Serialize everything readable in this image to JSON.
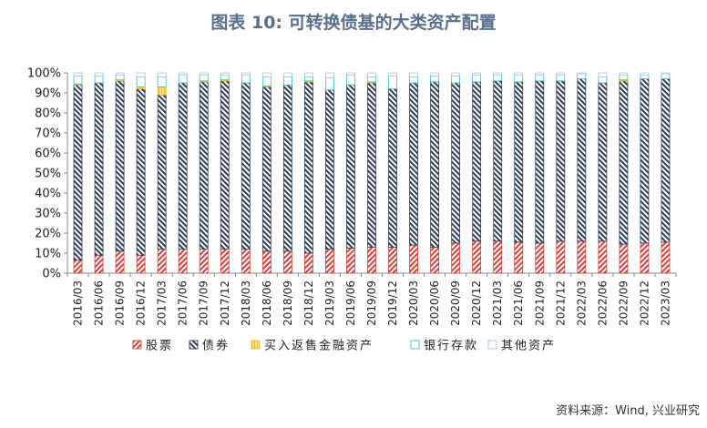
{
  "title": "图表 10: 可转换债基的大类资产配置",
  "source": "资料来源：Wind, 兴业研究",
  "chart_data": {
    "type": "bar",
    "stacked": true,
    "ylim": [
      0,
      100
    ],
    "yticks": [
      "0%",
      "10%",
      "20%",
      "30%",
      "40%",
      "50%",
      "60%",
      "70%",
      "80%",
      "90%",
      "100%"
    ],
    "categories": [
      "2016/03",
      "2016/06",
      "2016/09",
      "2016/12",
      "2017/03",
      "2017/06",
      "2017/09",
      "2017/12",
      "2018/03",
      "2018/06",
      "2018/09",
      "2018/12",
      "2019/03",
      "2019/06",
      "2019/09",
      "2019/12",
      "2020/03",
      "2020/06",
      "2020/09",
      "2020/12",
      "2021/03",
      "2021/06",
      "2021/09",
      "2021/12",
      "2022/03",
      "2022/06",
      "2022/09",
      "2022/12",
      "2023/03"
    ],
    "series": [
      {
        "name": "股票",
        "color": "#d9403a",
        "pattern": "diag-red",
        "values": [
          6.5,
          9,
          11,
          9,
          12,
          12,
          12,
          12,
          12,
          11,
          11,
          10,
          12,
          12.5,
          13,
          13,
          14,
          13,
          15,
          16,
          16,
          15.5,
          15,
          16,
          16,
          16,
          14.5,
          15,
          15.5
        ]
      },
      {
        "name": "债券",
        "color": "#2e3e57",
        "pattern": "diag-navy",
        "values": [
          87.5,
          86,
          85,
          83,
          77,
          83,
          83.5,
          84,
          83,
          82,
          83,
          85.5,
          79.5,
          81.5,
          82,
          79,
          81,
          82.5,
          80,
          79.5,
          80,
          80,
          81,
          80,
          81,
          79,
          81.5,
          82,
          81.5
        ]
      },
      {
        "name": "买入返售金融资产",
        "color": "#e8b923",
        "pattern": "grid-yellow",
        "values": [
          0.5,
          0,
          0.5,
          1,
          4,
          0,
          0.5,
          0.5,
          0,
          0.5,
          0,
          0.5,
          0,
          0,
          0.5,
          0,
          0,
          0,
          0,
          0,
          0,
          0,
          0,
          0,
          0,
          0,
          0.5,
          0,
          0
        ]
      },
      {
        "name": "银行存款",
        "color": "#2ec4c4",
        "pattern": "solid-cyan",
        "values": [
          4,
          3.5,
          2.5,
          5,
          5,
          4,
          3,
          2.5,
          4,
          4.5,
          4,
          2,
          6,
          5,
          2.5,
          6.5,
          3,
          3,
          3.5,
          3.5,
          3,
          3.5,
          3,
          3,
          2.5,
          3,
          2.5,
          2,
          2.5
        ]
      },
      {
        "name": "其他资产",
        "color": "#a9c4e0",
        "pattern": "solid-lightblue",
        "values": [
          1.5,
          1.5,
          1,
          2,
          2,
          1,
          1,
          1,
          1,
          2,
          2,
          2,
          2.5,
          1,
          2,
          1.5,
          2,
          1.5,
          1.5,
          1,
          1,
          1,
          1,
          1,
          0.5,
          2,
          1,
          1,
          0.5
        ]
      }
    ],
    "legend_position": "bottom",
    "grid": false
  }
}
